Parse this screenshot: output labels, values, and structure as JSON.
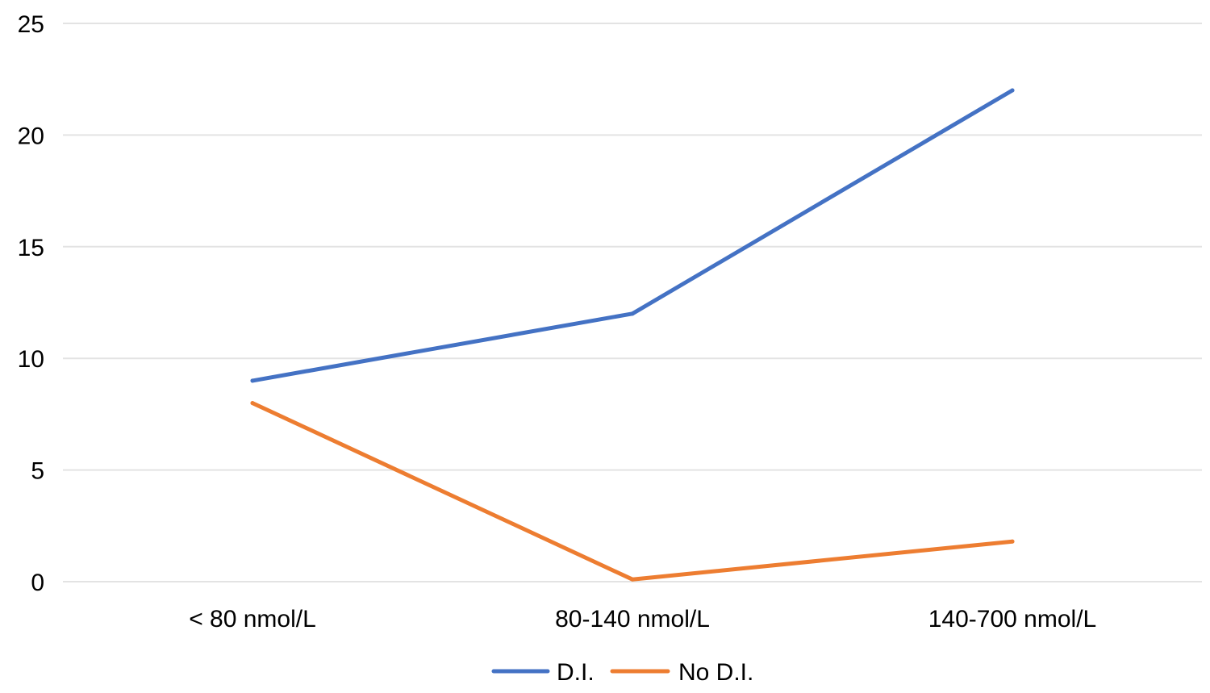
{
  "chart_data": {
    "type": "line",
    "title": "",
    "xlabel": "",
    "ylabel": "",
    "categories": [
      "< 80 nmol/L",
      "80-140 nmol/L",
      "140-700 nmol/L"
    ],
    "ylim": [
      0,
      25
    ],
    "yticks": [
      0,
      5,
      10,
      15,
      20,
      25
    ],
    "grid": true,
    "legend_position": "bottom",
    "series": [
      {
        "name": "D.I.",
        "color": "#4472c4",
        "values": [
          9,
          12,
          22
        ]
      },
      {
        "name": "No D.I.",
        "color": "#ed7d31",
        "values": [
          8,
          0.1,
          1.8
        ]
      }
    ]
  }
}
